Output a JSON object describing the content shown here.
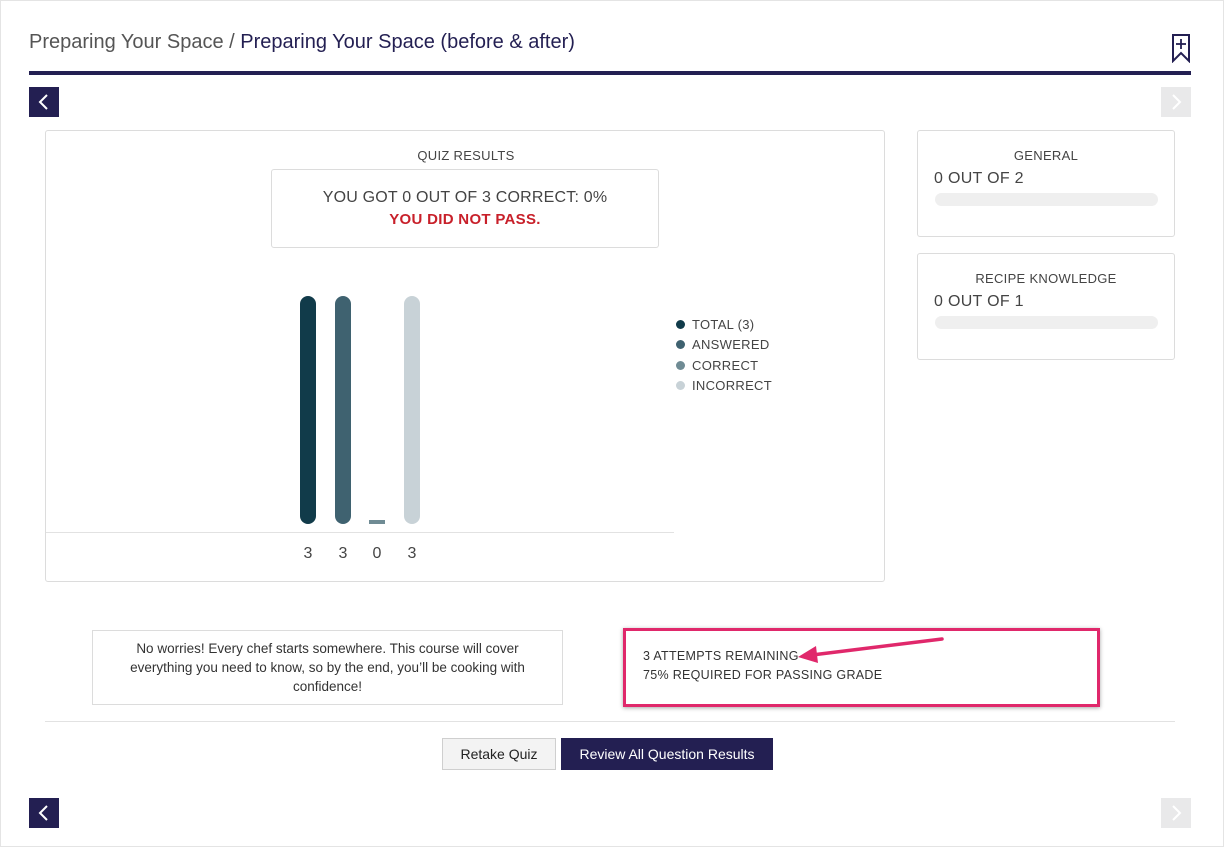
{
  "header": {
    "breadcrumb_parent": "Preparing Your Space",
    "breadcrumb_separator": " / ",
    "breadcrumb_current": "Preparing Your Space (before & after)"
  },
  "quiz": {
    "title": "QUIZ RESULTS",
    "score_line": "YOU GOT 0 OUT OF 3 CORRECT: 0%",
    "result_line": "YOU DID NOT PASS."
  },
  "chart_data": {
    "type": "bar",
    "categories": [
      "TOTAL (3)",
      "ANSWERED",
      "CORRECT",
      "INCORRECT"
    ],
    "values": [
      3,
      3,
      0,
      3
    ],
    "value_labels": [
      "3",
      "3",
      "0",
      "3"
    ],
    "ylim": [
      0,
      3
    ],
    "colors": [
      "#113b4a",
      "#3f6270",
      "#6f8b94",
      "#c8d2d7"
    ],
    "legend": [
      "TOTAL (3)",
      "ANSWERED",
      "CORRECT",
      "INCORRECT"
    ],
    "legend_position": "right",
    "grid": false
  },
  "categories_panel": [
    {
      "title": "GENERAL",
      "score": "0 OUT OF 2",
      "progress": 0
    },
    {
      "title": "RECIPE KNOWLEDGE",
      "score": "0 OUT OF 1",
      "progress": 0
    }
  ],
  "feedback": {
    "message": "No worries! Every chef starts somewhere. This course will cover everything you need to know, so by the end, you’ll be cooking with confidence!"
  },
  "attempts": {
    "remaining": "3 ATTEMPTS REMAINING",
    "passing": "75% REQUIRED FOR PASSING GRADE"
  },
  "actions": {
    "retake_label": "Retake Quiz",
    "review_label": "Review All Question Results"
  },
  "colors": {
    "brand": "#231f52",
    "fail": "#c8202a",
    "highlight": "#e0286b"
  },
  "icons": {
    "bookmark": "bookmark-add-icon",
    "prev": "chevron-left-icon",
    "next": "chevron-right-icon"
  }
}
